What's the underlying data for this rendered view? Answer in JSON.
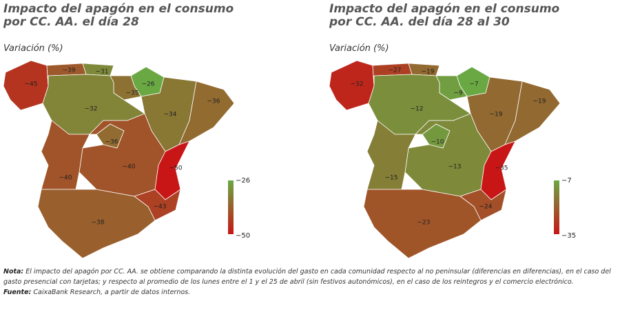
{
  "chart_data": [
    {
      "type": "choropleth",
      "title": [
        "Impacto del apagón en el consumo",
        "por CC. AA.  el día 28"
      ],
      "subtitle": "Variación (%)",
      "values": [
        -45,
        -39,
        -31,
        -26,
        -35,
        -34,
        -36,
        -32,
        -36,
        -40,
        -40,
        -50,
        -43,
        -38
      ],
      "value_labels": [
        "−45",
        "−39",
        "−31",
        "−26",
        "−35",
        "−34",
        "−36",
        "−32",
        "−36",
        "−40",
        "−40",
        "−50",
        "−43",
        "−38"
      ],
      "legend_ticks": [
        {
          "value": -26,
          "label": "−26"
        },
        {
          "value": -50,
          "label": "−50"
        }
      ],
      "colors": [
        "#6aa843",
        "#c81616"
      ]
    },
    {
      "type": "choropleth",
      "title": [
        "Impacto del apagón en el consumo",
        "por CC. AA. del día 28 al 30"
      ],
      "subtitle": "Variación (%)",
      "values": [
        -32,
        -27,
        -19,
        -7,
        -9,
        -19,
        -19,
        -12,
        -10,
        -13,
        -15,
        -35,
        -24,
        -23
      ],
      "value_labels": [
        "−32",
        "−27",
        "−19",
        "−7",
        "−9",
        "−19",
        "−19",
        "−12",
        "−10",
        "−13",
        "−15",
        "−35",
        "−24",
        "−23"
      ],
      "legend_ticks": [
        {
          "value": -7,
          "label": "−7"
        },
        {
          "value": -35,
          "label": "−35"
        }
      ],
      "colors": [
        "#6aa843",
        "#c81616"
      ]
    }
  ],
  "note_label": "Nota:",
  "note": "El impacto del apagón por CC. AA. se obtiene comparando la distinta evolución del gasto en cada comunidad  respecto al no peninsular (diferencias en diferencias), en el caso del gasto presencial con tarjetas; y respecto al promedio de los lunes entre el 1 y el 25 de abril (sin festivos autonómicos), en el caso de los reintegros y el comercio electrónico.",
  "source_label": "Fuente:",
  "source": "CaixaBank Research, a partir de datos internos."
}
